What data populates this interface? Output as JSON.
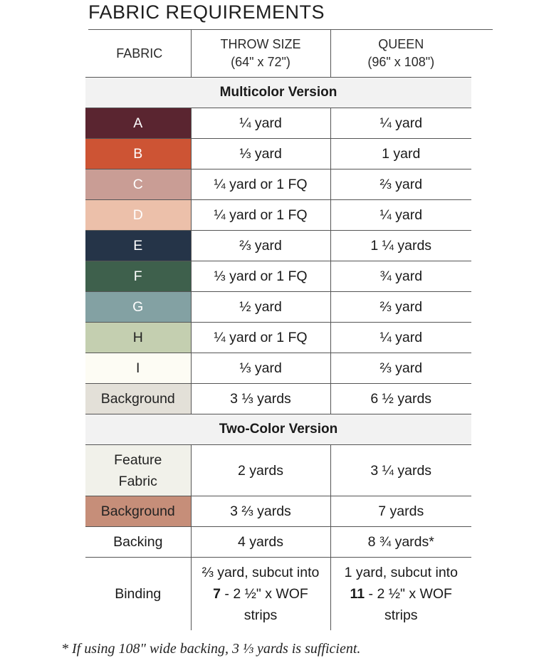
{
  "title": "FABRIC REQUIREMENTS",
  "header": {
    "fabric": "FABRIC",
    "throw_line1": "THROW SIZE",
    "throw_line2": "(64\" x 72\")",
    "queen_line1": "QUEEN",
    "queen_line2": "(96\" x 108\")"
  },
  "multicolor": {
    "heading": "Multicolor Version",
    "rows": [
      {
        "fabric": "A",
        "throw": "¼ yard",
        "queen": "¼ yard",
        "color": "#5a2530"
      },
      {
        "fabric": "B",
        "throw": "⅓ yard",
        "queen": "1 yard",
        "color": "#cd5434"
      },
      {
        "fabric": "C",
        "throw": "¼ yard or 1 FQ",
        "queen": "⅔ yard",
        "color": "#c99d95"
      },
      {
        "fabric": "D",
        "throw": "¼ yard or 1 FQ",
        "queen": "¼ yard",
        "color": "#ecc0aa"
      },
      {
        "fabric": "E",
        "throw": "⅔ yard",
        "queen": "1 ¼ yards",
        "color": "#253448"
      },
      {
        "fabric": "F",
        "throw": "⅓ yard or 1 FQ",
        "queen": "¾ yard",
        "color": "#3e604c"
      },
      {
        "fabric": "G",
        "throw": "½ yard",
        "queen": "⅔ yard",
        "color": "#83a1a3"
      },
      {
        "fabric": "H",
        "throw": "¼ yard or 1 FQ",
        "queen": "¼ yard",
        "color": "#c4cfb0"
      },
      {
        "fabric": "I",
        "throw": "⅓ yard",
        "queen": "⅔ yard",
        "color": "#fdfcf4"
      },
      {
        "fabric": "Background",
        "throw": "3 ⅓ yards",
        "queen": "6 ½ yards",
        "color": "#e3e0d8"
      }
    ]
  },
  "twocolor": {
    "heading": "Two-Color Version",
    "feature": {
      "fabric_line1": "Feature",
      "fabric_line2": "Fabric",
      "throw": "2 yards",
      "queen": "3 ¼ yards",
      "color": "#f1f1ea"
    },
    "background": {
      "fabric": "Background",
      "throw": "3 ⅔ yards",
      "queen": "7 yards",
      "color": "#c68e79"
    }
  },
  "backing": {
    "fabric": "Backing",
    "throw": "4 yards",
    "queen": "8 ¾ yards*"
  },
  "binding": {
    "fabric": "Binding",
    "throw_line1": "⅔ yard, subcut into",
    "throw_count": "7",
    "throw_line2": " - 2 ½\" x WOF",
    "throw_line3": "strips",
    "queen_line1": "1 yard, subcut into",
    "queen_count": "11",
    "queen_line2": " - 2 ½\" x WOF",
    "queen_line3": "strips"
  },
  "footnote": "* If using 108\" wide backing, 3 ⅓ yards is sufficient."
}
